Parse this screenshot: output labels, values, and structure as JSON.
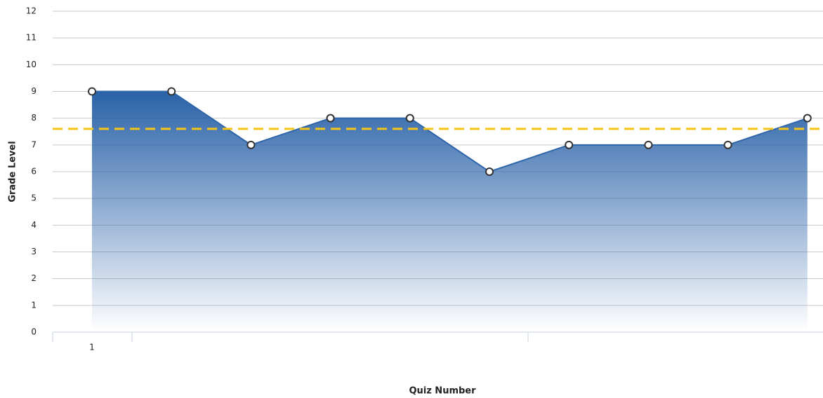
{
  "chart_data": {
    "type": "area",
    "x_label": "Quiz Number",
    "y_label": "Grade Level",
    "categories": [
      "1",
      null,
      null,
      null,
      null,
      null,
      null,
      null,
      null,
      null
    ],
    "series": [
      {
        "color": "#2f66aa",
        "values": [
          9,
          9,
          7,
          8,
          8,
          6,
          7,
          7,
          7,
          8
        ]
      }
    ],
    "reference_line": {
      "value": 7.6,
      "color": "#f5c518"
    },
    "ylim": [
      0,
      12
    ],
    "yticks": [
      0,
      1,
      2,
      3,
      4,
      5,
      6,
      7,
      8,
      9,
      10,
      11,
      12
    ],
    "grid": true
  }
}
